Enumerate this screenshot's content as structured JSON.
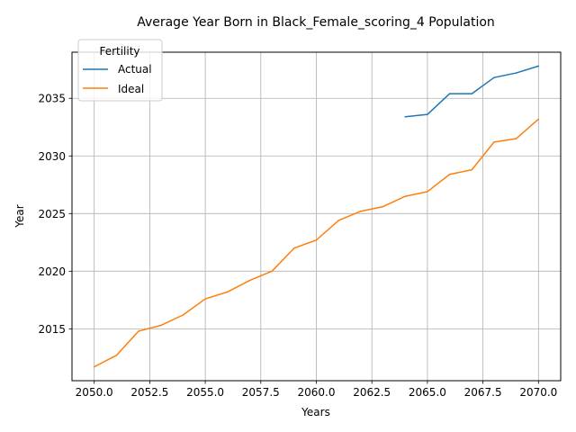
{
  "chart_data": {
    "type": "line",
    "title": "Average Year Born in Black_Female_scoring_4 Population",
    "xlabel": "Years",
    "ylabel": "Year",
    "xlim": [
      2049.0,
      2071.0
    ],
    "ylim": [
      2010.5,
      2039.0
    ],
    "xticks": [
      2050.0,
      2052.5,
      2055.0,
      2057.5,
      2060.0,
      2062.5,
      2065.0,
      2067.5,
      2070.0
    ],
    "xtick_labels": [
      "2050.0",
      "2052.5",
      "2055.0",
      "2057.5",
      "2060.0",
      "2062.5",
      "2065.0",
      "2067.5",
      "2070.0"
    ],
    "yticks": [
      2015,
      2020,
      2025,
      2030,
      2035
    ],
    "ytick_labels": [
      "2015",
      "2020",
      "2025",
      "2030",
      "2035"
    ],
    "grid": true,
    "legend": {
      "title": "Fertility",
      "placement": "top-left"
    },
    "series": [
      {
        "name": "Actual",
        "color": "#1f77b4",
        "x": [
          2064,
          2065,
          2066,
          2067,
          2068,
          2069,
          2070
        ],
        "y": [
          2033.4,
          2033.6,
          2035.4,
          2035.4,
          2036.8,
          2037.2,
          2037.8
        ]
      },
      {
        "name": "Ideal",
        "color": "#ff7f0e",
        "x": [
          2050,
          2051,
          2052,
          2053,
          2054,
          2055,
          2056,
          2057,
          2058,
          2059,
          2060,
          2061,
          2062,
          2063,
          2064,
          2065,
          2066,
          2067,
          2068,
          2069,
          2070
        ],
        "y": [
          2011.7,
          2012.7,
          2014.8,
          2015.3,
          2016.2,
          2017.6,
          2018.2,
          2019.2,
          2020.0,
          2022.0,
          2022.7,
          2024.4,
          2025.2,
          2025.6,
          2026.5,
          2026.9,
          2028.4,
          2028.8,
          2031.2,
          2031.5,
          2033.2
        ]
      }
    ]
  }
}
